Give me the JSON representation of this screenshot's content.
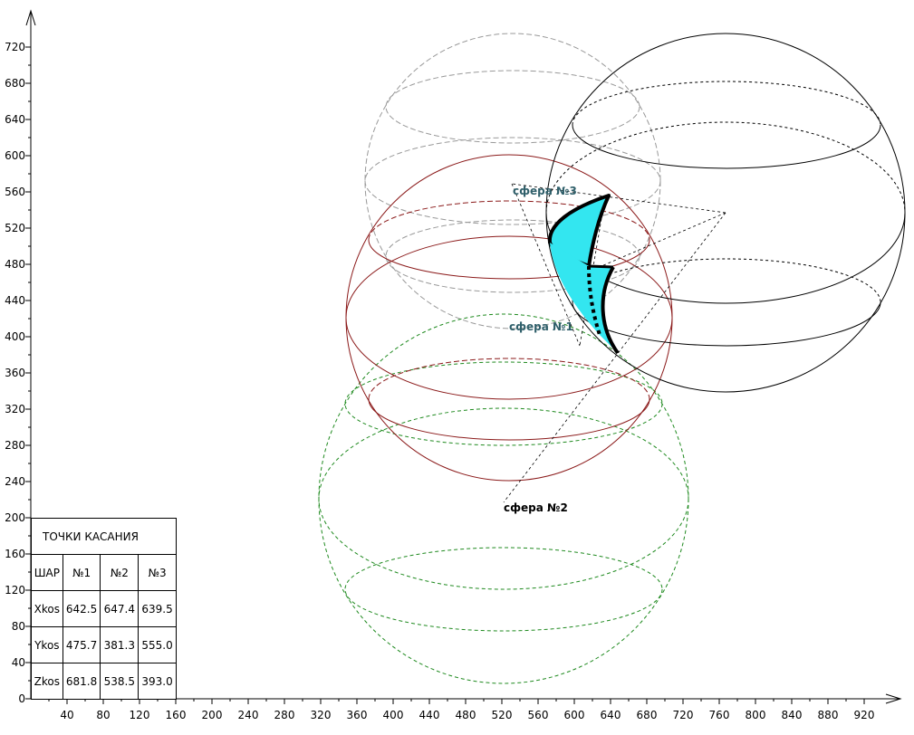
{
  "axes": {
    "x_ticks": [
      "40",
      "80",
      "120",
      "160",
      "200",
      "240",
      "280",
      "320",
      "360",
      "400",
      "440",
      "480",
      "520",
      "560",
      "600",
      "640",
      "680",
      "720",
      "760",
      "800",
      "840",
      "880",
      "920"
    ],
    "y_ticks": [
      "0",
      "40",
      "80",
      "120",
      "160",
      "200",
      "240",
      "280",
      "320",
      "360",
      "400",
      "440",
      "480",
      "520",
      "560",
      "600",
      "640",
      "680",
      "720"
    ]
  },
  "labels": {
    "sphere1": "сфера №1",
    "sphere2": "сфера №2",
    "sphere3": "сфера №3"
  },
  "colors": {
    "sphere1": "#8b1a1a",
    "sphere2": "#1f8a1f",
    "sphere3": "#999999",
    "big_sphere": "#000000",
    "patch_fill": "#33e6f0",
    "label_teal": "#2f5f6a"
  },
  "table": {
    "title": "ТОЧКИ КАСАНИЯ",
    "headers": [
      "ШАР",
      "№1",
      "№2",
      "№3"
    ],
    "rows": [
      [
        "Xkos",
        "642.5",
        "647.4",
        "639.5"
      ],
      [
        "Ykos",
        "475.7",
        "381.3",
        "555.0"
      ],
      [
        "Zkos",
        "681.8",
        "538.5",
        "393.0"
      ]
    ]
  }
}
